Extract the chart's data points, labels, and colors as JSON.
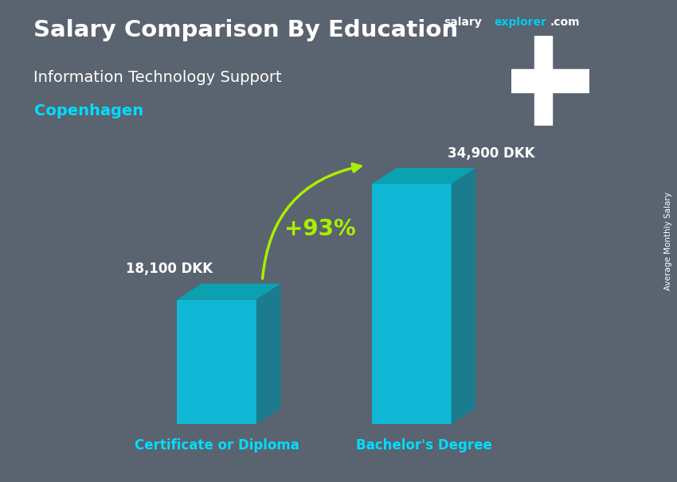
{
  "title_bold": "Salary Comparison By Education",
  "subtitle": "Information Technology Support",
  "city": "Copenhagen",
  "site_text_salary": "salary",
  "site_text_explorer": "explorer",
  "site_text_com": ".com",
  "ylabel_rotated": "Average Monthly Salary",
  "categories": [
    "Certificate or Diploma",
    "Bachelor's Degree"
  ],
  "values": [
    18100,
    34900
  ],
  "value_labels": [
    "18,100 DKK",
    "34,900 DKK"
  ],
  "percent_label": "+93%",
  "bar_color_face": "#00ccee",
  "bar_color_top": "#00aabb",
  "bar_color_side": "#008899",
  "background_color": "#5a6370",
  "title_color": "#ffffff",
  "subtitle_color": "#ffffff",
  "city_color": "#00ddff",
  "value_label_color": "#ffffff",
  "percent_color": "#aaee00",
  "xlabel_color": "#00ddff",
  "arrow_color": "#aaee00",
  "site_salary_color": "#ffffff",
  "site_explorer_color": "#00ccee",
  "site_com_color": "#ffffff",
  "figsize": [
    8.5,
    6.06
  ],
  "dpi": 100,
  "bar_width": 0.13,
  "ylim": [
    0,
    42000
  ],
  "flag_red": "#c60c30",
  "flag_white": "#ffffff",
  "positions": [
    0.3,
    0.62
  ]
}
